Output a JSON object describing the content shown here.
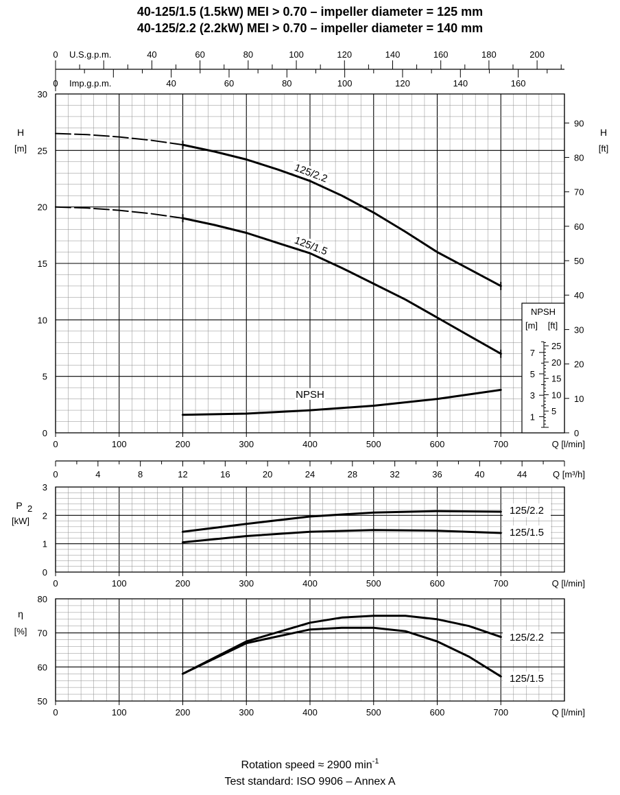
{
  "titles": {
    "line1": "40-125/1.5 (1.5kW) MEI > 0.70 – impeller diameter = 125 mm",
    "line2": "40-125/2.2 (2.2kW) MEI > 0.70 – impeller diameter = 140 mm"
  },
  "footer": {
    "rotation_prefix": "Rotation speed ≈ 2900 min",
    "rotation_exp": "-1",
    "standard": "Test standard: ISO 9906 – Annex A"
  },
  "chart_data": [
    {
      "type": "line",
      "panel": "head",
      "ylabel": [
        "H",
        "[m]"
      ],
      "ylabel_right": [
        "H",
        "[ft]"
      ],
      "ylim": [
        0,
        30
      ],
      "yticks": [
        0,
        5,
        10,
        15,
        20,
        25,
        30
      ],
      "yticks_right_ft": [
        0,
        10,
        20,
        30,
        40,
        50,
        60,
        70,
        80,
        90
      ],
      "xlim": [
        0,
        800
      ],
      "xticks": [
        0,
        100,
        200,
        300,
        400,
        500,
        600,
        700
      ],
      "xlabel": "Q [l/min]",
      "top_axis_usgpm": {
        "label": "U.S.g.p.m.",
        "ticks": [
          0,
          40,
          60,
          80,
          100,
          120,
          140,
          160,
          180,
          200
        ]
      },
      "top_axis_impgpm": {
        "label": "Imp.g.p.m.",
        "ticks": [
          0,
          40,
          60,
          80,
          100,
          120,
          140,
          160
        ]
      },
      "bottom_axis_m3h": {
        "label": "Q [m³/h]",
        "ticks": [
          0,
          4,
          8,
          12,
          16,
          20,
          24,
          28,
          32,
          36,
          40,
          44
        ]
      },
      "series": [
        {
          "name": "125/2.2",
          "dashed": {
            "x": [
              0,
              50,
              100,
              150,
              200
            ],
            "y": [
              26.5,
              26.4,
              26.2,
              25.9,
              25.5
            ]
          },
          "x": [
            200,
            250,
            300,
            350,
            400,
            450,
            500,
            550,
            600,
            650,
            700
          ],
          "y": [
            25.5,
            24.9,
            24.2,
            23.3,
            22.3,
            21.0,
            19.5,
            17.8,
            16.0,
            14.5,
            13.0
          ]
        },
        {
          "name": "125/1.5",
          "dashed": {
            "x": [
              0,
              50,
              100,
              150,
              200
            ],
            "y": [
              20.0,
              19.9,
              19.7,
              19.4,
              19.0
            ]
          },
          "x": [
            200,
            250,
            300,
            350,
            400,
            450,
            500,
            550,
            600,
            650,
            700
          ],
          "y": [
            19.0,
            18.4,
            17.7,
            16.8,
            15.9,
            14.6,
            13.2,
            11.8,
            10.2,
            8.6,
            7.0
          ]
        },
        {
          "name": "NPSH",
          "x": [
            200,
            300,
            400,
            500,
            600,
            700
          ],
          "y": [
            1.6,
            1.7,
            2.0,
            2.4,
            3.0,
            3.8
          ]
        }
      ],
      "npsh_inset": {
        "header": "NPSH",
        "m_label": "[m]",
        "ft_label": "[ft]",
        "m_ticks": [
          1,
          3,
          5,
          7
        ],
        "ft_ticks": [
          5,
          10,
          15,
          20,
          25
        ]
      }
    },
    {
      "type": "line",
      "panel": "power",
      "ylabel": [
        "P",
        "2",
        "[kW]"
      ],
      "ylim": [
        0,
        3
      ],
      "yticks": [
        0,
        1,
        2,
        3
      ],
      "xlim": [
        0,
        800
      ],
      "xticks": [
        0,
        100,
        200,
        300,
        400,
        500,
        600,
        700
      ],
      "xlabel": "Q [l/min]",
      "series": [
        {
          "name": "125/2.2",
          "x": [
            200,
            300,
            400,
            500,
            600,
            700
          ],
          "y": [
            1.42,
            1.7,
            1.96,
            2.1,
            2.15,
            2.13
          ]
        },
        {
          "name": "125/1.5",
          "x": [
            200,
            300,
            400,
            500,
            600,
            700
          ],
          "y": [
            1.05,
            1.27,
            1.42,
            1.48,
            1.46,
            1.38
          ]
        }
      ]
    },
    {
      "type": "line",
      "panel": "efficiency",
      "ylabel": [
        "η",
        "[%]"
      ],
      "ylim": [
        50,
        80
      ],
      "yticks": [
        50,
        60,
        70,
        80
      ],
      "xlim": [
        0,
        800
      ],
      "xticks": [
        0,
        100,
        200,
        300,
        400,
        500,
        600,
        700
      ],
      "xlabel": "Q [l/min]",
      "series": [
        {
          "name": "125/2.2",
          "x": [
            200,
            300,
            400,
            450,
            500,
            550,
            600,
            650,
            700
          ],
          "y": [
            58.0,
            67.5,
            73.0,
            74.5,
            75.0,
            75.0,
            74.0,
            72.0,
            68.8
          ]
        },
        {
          "name": "125/1.5",
          "x": [
            200,
            300,
            400,
            450,
            500,
            550,
            600,
            650,
            700
          ],
          "y": [
            58.0,
            67.0,
            71.0,
            71.5,
            71.5,
            70.5,
            67.5,
            63.0,
            57.2
          ]
        }
      ]
    }
  ]
}
